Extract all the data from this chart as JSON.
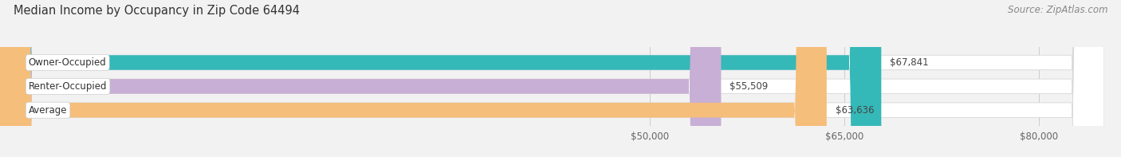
{
  "title": "Median Income by Occupancy in Zip Code 64494",
  "source": "Source: ZipAtlas.com",
  "categories": [
    "Owner-Occupied",
    "Renter-Occupied",
    "Average"
  ],
  "values": [
    67841,
    55509,
    63636
  ],
  "bar_colors": [
    "#35b8b8",
    "#c8afd5",
    "#f5be7a"
  ],
  "bar_labels": [
    "$67,841",
    "$55,509",
    "$63,636"
  ],
  "xlim_min": 0,
  "xlim_max": 85000,
  "xticks": [
    50000,
    65000,
    80000
  ],
  "xtick_labels": [
    "$50,000",
    "$65,000",
    "$80,000"
  ],
  "bg_color": "#f2f2f2",
  "bar_bg_color": "#e6e6e6",
  "title_fontsize": 10.5,
  "label_fontsize": 8.5,
  "value_fontsize": 8.5,
  "source_fontsize": 8.5
}
